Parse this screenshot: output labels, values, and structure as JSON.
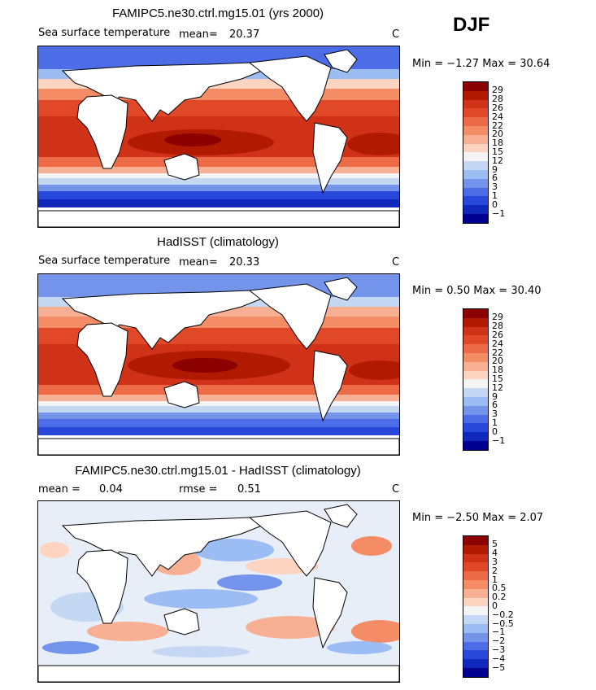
{
  "season": "DJF",
  "panels": [
    {
      "title": "FAMIPC5.ne30.ctrl.mg15.01 (yrs 2000)",
      "variable": "Sea surface temperature",
      "mean_label": "mean=",
      "mean": "20.37",
      "units": "C",
      "minmax": "Min =  −1.27 Max =  30.64",
      "colors": [
        "#8b0000",
        "#b21a00",
        "#d03218",
        "#e04828",
        "#ec6a46",
        "#f48c66",
        "#f8b094",
        "#fcd4c0",
        "#f4f4f4",
        "#c4d8f4",
        "#9cbcf4",
        "#7494ec",
        "#4c6ce8",
        "#2848dc",
        "#1028bc",
        "#000090"
      ],
      "ticks": [
        "29",
        "28",
        "26",
        "24",
        "22",
        "20",
        "18",
        "15",
        "12",
        "9",
        "6",
        "3",
        "1",
        "0",
        "−1"
      ]
    },
    {
      "title": "HadISST (climatology)",
      "variable": "Sea surface temperature",
      "mean_label": "mean=",
      "mean": "20.33",
      "units": "C",
      "minmax": "Min =   0.50 Max =  30.40",
      "colors": [
        "#8b0000",
        "#b21a00",
        "#d03218",
        "#e04828",
        "#ec6a46",
        "#f48c66",
        "#f8b094",
        "#fcd4c0",
        "#f4f4f4",
        "#c4d8f4",
        "#9cbcf4",
        "#7494ec",
        "#4c6ce8",
        "#2848dc",
        "#1028bc",
        "#000090"
      ],
      "ticks": [
        "29",
        "28",
        "26",
        "24",
        "22",
        "20",
        "18",
        "15",
        "12",
        "9",
        "6",
        "3",
        "1",
        "0",
        "−1"
      ]
    },
    {
      "title": "FAMIPC5.ne30.ctrl.mg15.01 - HadISST (climatology)",
      "mean_label": "mean =",
      "mean": "0.04",
      "rmse_label": "rmse =",
      "rmse": "0.51",
      "units": "C",
      "minmax": "Min =  −2.50 Max =   2.07",
      "colors": [
        "#8b0000",
        "#b21a00",
        "#d03218",
        "#e04828",
        "#ec6a46",
        "#f48c66",
        "#f8b094",
        "#fcd4c0",
        "#f4f4f4",
        "#c4d8f4",
        "#9cbcf4",
        "#7494ec",
        "#4c6ce8",
        "#2848dc",
        "#1028bc",
        "#000090"
      ],
      "ticks": [
        "5",
        "4",
        "3",
        "2",
        "1",
        "0.5",
        "0.2",
        "0",
        "−0.2",
        "−0.5",
        "−1",
        "−2",
        "−3",
        "−4",
        "−5"
      ]
    }
  ]
}
